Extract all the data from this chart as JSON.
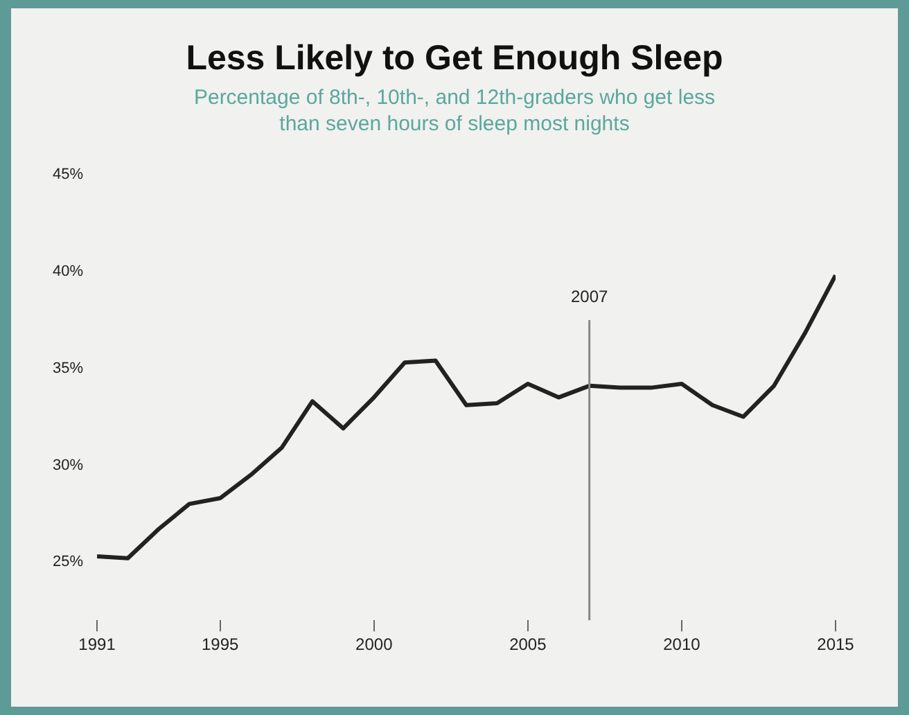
{
  "chart_data": {
    "type": "line",
    "title": "Less Likely to Get Enough Sleep",
    "subtitle": "Percentage of 8th-, 10th-, and 12th-graders who get less than seven hours of sleep most nights",
    "x": [
      1991,
      1992,
      1993,
      1994,
      1995,
      1996,
      1997,
      1998,
      1999,
      2000,
      2001,
      2002,
      2003,
      2004,
      2005,
      2006,
      2007,
      2008,
      2009,
      2010,
      2011,
      2012,
      2013,
      2014,
      2015
    ],
    "series": [
      {
        "color": "#222222",
        "values": [
          25.3,
          25.2,
          26.7,
          28.0,
          28.3,
          29.5,
          30.9,
          33.3,
          31.9,
          33.5,
          35.3,
          35.4,
          33.1,
          33.2,
          34.2,
          33.5,
          34.1,
          34.0,
          34.0,
          34.2,
          33.1,
          32.5,
          34.1,
          36.8,
          39.8
        ]
      }
    ],
    "xlim": [
      1991,
      2015
    ],
    "xticks": [
      1991,
      1995,
      2000,
      2005,
      2010,
      2015
    ],
    "ylim": [
      22,
      45
    ],
    "yticks": [
      {
        "value": 25,
        "label": "25%"
      },
      {
        "value": 30,
        "label": "30%"
      },
      {
        "value": 35,
        "label": "35%"
      },
      {
        "value": 40,
        "label": "40%"
      },
      {
        "value": 45,
        "label": "45%"
      }
    ],
    "ref_lines": [
      {
        "axis": "x",
        "value": 2007,
        "label": "2007",
        "color": "#888888"
      }
    ],
    "grid": false,
    "legend": false,
    "marker": "none",
    "line_style": "solid"
  }
}
